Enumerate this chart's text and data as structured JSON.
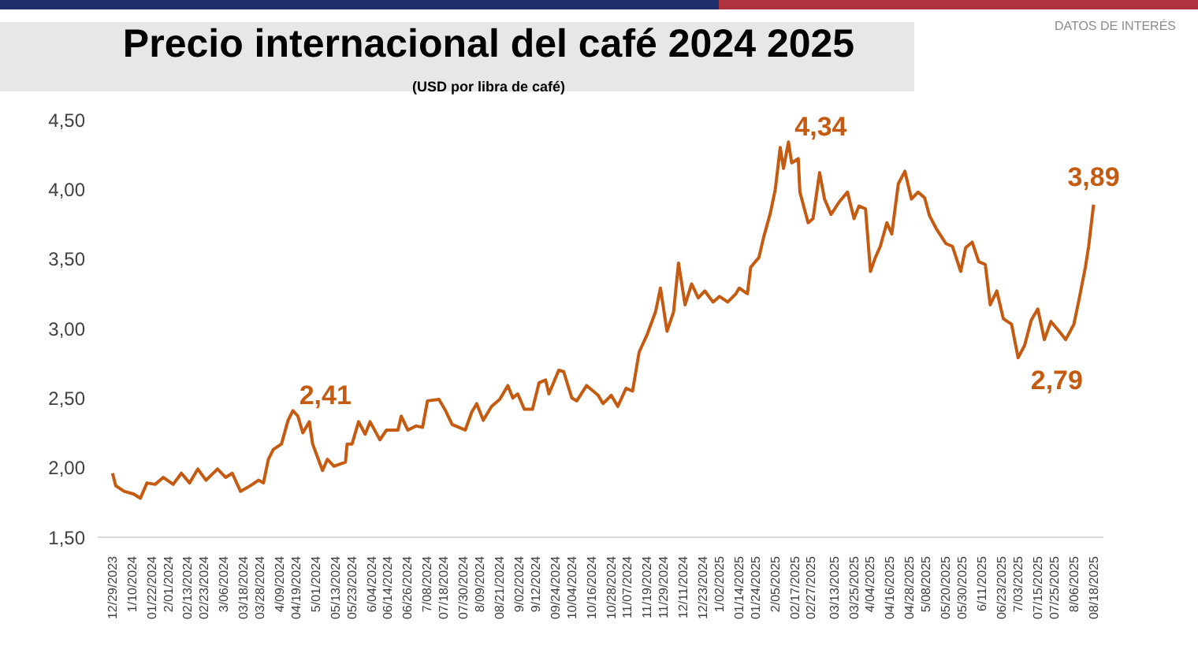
{
  "chart_data": {
    "type": "line",
    "title": "Precio internacional del café 2024 2025",
    "subtitle": "(USD por libra de café)",
    "annotations": [
      "DATOS DE INTERÉS"
    ],
    "x": [
      "2023-12-29",
      "2023-12-31",
      "2024-01-05",
      "2024-01-11",
      "2024-01-15",
      "2024-01-19",
      "2024-01-24",
      "2024-01-29",
      "2024-02-04",
      "2024-02-09",
      "2024-02-14",
      "2024-02-19",
      "2024-02-24",
      "2024-03-02",
      "2024-03-07",
      "2024-03-11",
      "2024-03-16",
      "2024-03-22",
      "2024-03-27",
      "2024-03-30",
      "2024-04-02",
      "2024-04-05",
      "2024-04-10",
      "2024-04-14",
      "2024-04-17",
      "2024-04-20",
      "2024-04-23",
      "2024-04-27",
      "2024-04-29",
      "2024-05-05",
      "2024-05-08",
      "2024-05-12",
      "2024-05-19",
      "2024-05-20",
      "2024-05-23",
      "2024-05-27",
      "2024-05-31",
      "2024-06-03",
      "2024-06-09",
      "2024-06-13",
      "2024-06-20",
      "2024-06-22",
      "2024-06-26",
      "2024-07-01",
      "2024-07-05",
      "2024-07-08",
      "2024-07-15",
      "2024-07-19",
      "2024-07-23",
      "2024-07-31",
      "2024-08-04",
      "2024-08-07",
      "2024-08-11",
      "2024-08-16",
      "2024-08-21",
      "2024-08-26",
      "2024-08-29",
      "2024-09-01",
      "2024-09-05",
      "2024-09-10",
      "2024-09-14",
      "2024-09-18",
      "2024-09-20",
      "2024-09-26",
      "2024-09-29",
      "2024-10-04",
      "2024-10-07",
      "2024-10-13",
      "2024-10-20",
      "2024-10-23",
      "2024-10-28",
      "2024-11-01",
      "2024-11-06",
      "2024-11-10",
      "2024-11-14",
      "2024-11-19",
      "2024-11-24",
      "2024-11-27",
      "2024-12-01",
      "2024-12-05",
      "2024-12-08",
      "2024-12-12",
      "2024-12-16",
      "2024-12-20",
      "2024-12-24",
      "2024-12-29",
      "2025-01-02",
      "2025-01-07",
      "2025-01-12",
      "2025-01-14",
      "2025-01-19",
      "2025-01-21",
      "2025-01-26",
      "2025-01-29",
      "2025-02-02",
      "2025-02-05",
      "2025-02-08",
      "2025-02-10",
      "2025-02-13",
      "2025-02-15",
      "2025-02-19",
      "2025-02-20",
      "2025-02-25",
      "2025-02-28",
      "2025-03-04",
      "2025-03-07",
      "2025-03-11",
      "2025-03-16",
      "2025-03-21",
      "2025-03-25",
      "2025-03-28",
      "2025-04-01",
      "2025-04-04",
      "2025-04-07",
      "2025-04-10",
      "2025-04-14",
      "2025-04-17",
      "2025-04-21",
      "2025-04-25",
      "2025-04-29",
      "2025-05-03",
      "2025-05-07",
      "2025-05-10",
      "2025-05-14",
      "2025-05-20",
      "2025-05-24",
      "2025-05-29",
      "2025-06-01",
      "2025-06-05",
      "2025-06-09",
      "2025-06-13",
      "2025-06-16",
      "2025-06-20",
      "2025-06-24",
      "2025-06-29",
      "2025-07-03",
      "2025-07-07",
      "2025-07-11",
      "2025-07-15",
      "2025-07-19",
      "2025-07-23",
      "2025-07-28",
      "2025-08-01",
      "2025-08-06",
      "2025-08-09",
      "2025-08-13",
      "2025-08-15",
      "2025-08-18"
    ],
    "series": [
      {
        "color": "#c55a11",
        "values": [
          1.96,
          1.87,
          1.83,
          1.81,
          1.78,
          1.89,
          1.88,
          1.93,
          1.88,
          1.96,
          1.89,
          1.99,
          1.91,
          1.99,
          1.93,
          1.96,
          1.83,
          1.87,
          1.91,
          1.89,
          2.06,
          2.13,
          2.17,
          2.34,
          2.41,
          2.37,
          2.25,
          2.33,
          2.17,
          1.98,
          2.06,
          2.01,
          2.04,
          2.17,
          2.17,
          2.33,
          2.24,
          2.33,
          2.2,
          2.27,
          2.27,
          2.37,
          2.27,
          2.3,
          2.29,
          2.48,
          2.49,
          2.41,
          2.31,
          2.27,
          2.4,
          2.46,
          2.34,
          2.44,
          2.49,
          2.59,
          2.5,
          2.53,
          2.42,
          2.42,
          2.61,
          2.63,
          2.53,
          2.7,
          2.69,
          2.5,
          2.48,
          2.59,
          2.52,
          2.46,
          2.52,
          2.44,
          2.57,
          2.55,
          2.83,
          2.96,
          3.12,
          3.29,
          2.98,
          3.12,
          3.47,
          3.17,
          3.32,
          3.22,
          3.27,
          3.19,
          3.23,
          3.19,
          3.25,
          3.29,
          3.25,
          3.44,
          3.51,
          3.66,
          3.83,
          4.0,
          4.3,
          4.15,
          4.34,
          4.19,
          4.22,
          3.98,
          3.76,
          3.79,
          4.12,
          3.93,
          3.82,
          3.91,
          3.98,
          3.79,
          3.88,
          3.86,
          3.41,
          3.51,
          3.59,
          3.76,
          3.68,
          4.04,
          4.13,
          3.93,
          3.98,
          3.94,
          3.81,
          3.72,
          3.61,
          3.59,
          3.41,
          3.58,
          3.62,
          3.48,
          3.46,
          3.17,
          3.27,
          3.07,
          3.03,
          2.79,
          2.88,
          3.06,
          3.14,
          2.92,
          3.05,
          2.98,
          2.92,
          3.03,
          3.2,
          3.44,
          3.59,
          3.89
        ],
        "value_labels": [
          null,
          null,
          null,
          null,
          null,
          null,
          null,
          null,
          null,
          null,
          null,
          null,
          null,
          null,
          null,
          null,
          null,
          null,
          null,
          null,
          null,
          null,
          null,
          null,
          "2,41",
          null,
          null,
          null,
          null,
          null,
          null,
          null,
          null,
          null,
          null,
          null,
          null,
          null,
          null,
          null,
          null,
          null,
          null,
          null,
          null,
          null,
          null,
          null,
          null,
          null,
          null,
          null,
          null,
          null,
          null,
          null,
          null,
          null,
          null,
          null,
          null,
          null,
          null,
          null,
          null,
          null,
          null,
          null,
          null,
          null,
          null,
          null,
          null,
          null,
          null,
          null,
          null,
          null,
          null,
          null,
          null,
          null,
          null,
          null,
          null,
          null,
          null,
          null,
          null,
          null,
          null,
          null,
          null,
          null,
          null,
          null,
          null,
          null,
          "4,34",
          null,
          null,
          null,
          null,
          null,
          null,
          null,
          null,
          null,
          null,
          null,
          null,
          null,
          null,
          null,
          null,
          null,
          null,
          null,
          null,
          null,
          null,
          null,
          null,
          null,
          null,
          null,
          null,
          null,
          null,
          null,
          null,
          null,
          null,
          null,
          null,
          "2,79",
          null,
          null,
          null,
          null,
          null,
          null,
          null,
          null,
          null,
          null,
          null,
          "3,89"
        ]
      }
    ],
    "xlim": [
      "2023-12-20",
      "2025-08-24"
    ],
    "xticks": [
      {
        "value": "2023-12-29",
        "label": "12/29/2023"
      },
      {
        "value": "2024-01-10",
        "label": "1/10/2024"
      },
      {
        "value": "2024-01-22",
        "label": "01/22/2024"
      },
      {
        "value": "2024-02-01",
        "label": "2/01/2024"
      },
      {
        "value": "2024-02-13",
        "label": "02/13/2024"
      },
      {
        "value": "2024-02-23",
        "label": "02/23/2024"
      },
      {
        "value": "2024-03-06",
        "label": "3/06/2024"
      },
      {
        "value": "2024-03-18",
        "label": "03/18/2024"
      },
      {
        "value": "2024-03-28",
        "label": "03/28/2024"
      },
      {
        "value": "2024-04-09",
        "label": "4/09/2024"
      },
      {
        "value": "2024-04-19",
        "label": "04/19/2024"
      },
      {
        "value": "2024-05-01",
        "label": "5/01/2024"
      },
      {
        "value": "2024-05-13",
        "label": "05/13/2024"
      },
      {
        "value": "2024-05-23",
        "label": "05/23/2024"
      },
      {
        "value": "2024-06-04",
        "label": "6/04/2024"
      },
      {
        "value": "2024-06-14",
        "label": "06/14/2024"
      },
      {
        "value": "2024-06-26",
        "label": "06/26/2024"
      },
      {
        "value": "2024-07-08",
        "label": "7/08/2024"
      },
      {
        "value": "2024-07-18",
        "label": "07/18/2024"
      },
      {
        "value": "2024-07-30",
        "label": "07/30/2024"
      },
      {
        "value": "2024-08-09",
        "label": "8/09/2024"
      },
      {
        "value": "2024-08-21",
        "label": "08/21/2024"
      },
      {
        "value": "2024-09-02",
        "label": "9/02/2024"
      },
      {
        "value": "2024-09-12",
        "label": "9/12/2024"
      },
      {
        "value": "2024-09-24",
        "label": "09/24/2024"
      },
      {
        "value": "2024-10-04",
        "label": "10/04/2024"
      },
      {
        "value": "2024-10-16",
        "label": "10/16/2024"
      },
      {
        "value": "2024-10-28",
        "label": "10/28/2024"
      },
      {
        "value": "2024-11-07",
        "label": "11/07/2024"
      },
      {
        "value": "2024-11-19",
        "label": "11/19/2024"
      },
      {
        "value": "2024-11-29",
        "label": "11/29/2024"
      },
      {
        "value": "2024-12-11",
        "label": "12/11/2024"
      },
      {
        "value": "2024-12-23",
        "label": "12/23/2024"
      },
      {
        "value": "2025-01-02",
        "label": "1/02/2025"
      },
      {
        "value": "2025-01-14",
        "label": "01/14/2025"
      },
      {
        "value": "2025-01-24",
        "label": "01/24/2025"
      },
      {
        "value": "2025-02-05",
        "label": "2/05/2025"
      },
      {
        "value": "2025-02-17",
        "label": "02/17/2025"
      },
      {
        "value": "2025-02-27",
        "label": "02/27/2025"
      },
      {
        "value": "2025-03-13",
        "label": "03/13/2025"
      },
      {
        "value": "2025-03-25",
        "label": "03/25/2025"
      },
      {
        "value": "2025-04-04",
        "label": "4/04/2025"
      },
      {
        "value": "2025-04-16",
        "label": "04/16/2025"
      },
      {
        "value": "2025-04-28",
        "label": "04/28/2025"
      },
      {
        "value": "2025-05-08",
        "label": "5/08/2025"
      },
      {
        "value": "2025-05-20",
        "label": "05/20/2025"
      },
      {
        "value": "2025-05-30",
        "label": "05/30/2025"
      },
      {
        "value": "2025-06-11",
        "label": "6/11/2025"
      },
      {
        "value": "2025-06-23",
        "label": "06/23/2025"
      },
      {
        "value": "2025-07-03",
        "label": "7/03/2025"
      },
      {
        "value": "2025-07-15",
        "label": "07/15/2025"
      },
      {
        "value": "2025-07-25",
        "label": "07/25/2025"
      },
      {
        "value": "2025-08-06",
        "label": "8/06/2025"
      },
      {
        "value": "2025-08-18",
        "label": "08/18/2025"
      }
    ],
    "ylim": [
      1.5,
      4.5
    ],
    "yticks": [
      {
        "value": 1.5,
        "label": "1,50"
      },
      {
        "value": 2.0,
        "label": "2,00"
      },
      {
        "value": 2.5,
        "label": "2,50"
      },
      {
        "value": 3.0,
        "label": "3,00"
      },
      {
        "value": 3.5,
        "label": "3,50"
      },
      {
        "value": 4.0,
        "label": "4,00"
      },
      {
        "value": 4.5,
        "label": "4,50"
      }
    ],
    "grid": false,
    "legend": false,
    "marker": "none",
    "line_style": "solid"
  }
}
